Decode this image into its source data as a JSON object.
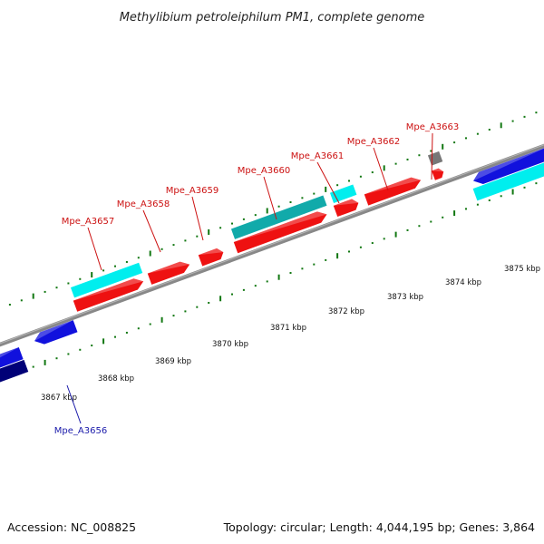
{
  "title": "Methylibium petroleiphilum PM1, complete genome",
  "footer": {
    "accession": "Accession: NC_008825",
    "summary": "Topology: circular; Length: 4,044,195 bp; Genes: 3,864"
  },
  "axis": {
    "unit": "kbp",
    "tick_labels": [
      "3867 kbp",
      "3868 kbp",
      "3869 kbp",
      "3870 kbp",
      "3871 kbp",
      "3872 kbp",
      "3873 kbp",
      "3874 kbp",
      "3875 kbp"
    ]
  },
  "gene_labels": [
    {
      "name": "Mpe_A3656",
      "color": "#1a1aaa"
    },
    {
      "name": "Mpe_A3657",
      "color": "#cc1111"
    },
    {
      "name": "Mpe_A3658",
      "color": "#cc1111"
    },
    {
      "name": "Mpe_A3659",
      "color": "#cc1111"
    },
    {
      "name": "Mpe_A3660",
      "color": "#cc1111"
    },
    {
      "name": "Mpe_A3661",
      "color": "#cc1111"
    },
    {
      "name": "Mpe_A3662",
      "color": "#cc1111"
    },
    {
      "name": "Mpe_A3663",
      "color": "#cc1111"
    }
  ],
  "colors": {
    "forward_cds": "#ee1111",
    "reverse_cds": "#1111dd",
    "reverse_dark": "#000077",
    "cyan_feature": "#00eeee",
    "teal_feature": "#11aaaa",
    "gray_feature": "#777777",
    "backbone": "#888888",
    "ticks": "#117711"
  }
}
